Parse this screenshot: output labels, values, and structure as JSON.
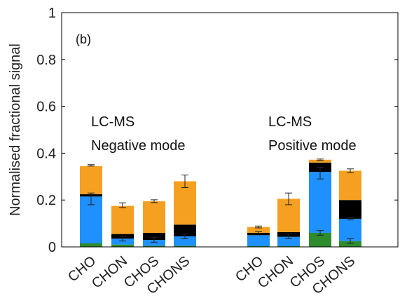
{
  "chart_data": {
    "type": "bar",
    "stacked": true,
    "panel_label": "(b)",
    "ylabel": "Normalised fractional signal",
    "xlabel": "",
    "ylim": [
      0,
      1
    ],
    "y_ticks": [
      "0",
      "0.2",
      "0.4",
      "0.6",
      "0.8",
      "1"
    ],
    "grid": false,
    "annotations": [
      {
        "lines": [
          "LC-MS",
          "Negative mode"
        ]
      },
      {
        "lines": [
          "LC-MS",
          "Positive mode"
        ]
      }
    ],
    "groups": [
      {
        "categories": [
          "CHO",
          "CHON",
          "CHOS",
          "CHONS"
        ],
        "stacks": [
          {
            "green": 0.015,
            "blue": 0.2,
            "black": 0.01,
            "orange": 0.12,
            "err_bars": [
              [
                0.205,
                0.025
              ],
              [
                0.348,
                0.003
              ]
            ]
          },
          {
            "green": 0.01,
            "blue": 0.025,
            "black": 0.02,
            "orange": 0.12,
            "err_bars": [
              [
                0.035,
                0.01
              ],
              [
                0.178,
                0.01
              ]
            ]
          },
          {
            "green": 0.005,
            "blue": 0.025,
            "black": 0.03,
            "orange": 0.135,
            "err_bars": [
              [
                0.03,
                0.01
              ],
              [
                0.195,
                0.006
              ]
            ]
          },
          {
            "green": 0.005,
            "blue": 0.04,
            "black": 0.05,
            "orange": 0.185,
            "err_bars": [
              [
                0.045,
                0.01
              ],
              [
                0.28,
                0.027
              ]
            ]
          }
        ]
      },
      {
        "categories": [
          "CHO",
          "CHON",
          "CHOS",
          "CHONS"
        ],
        "stacks": [
          {
            "green": 0.003,
            "blue": 0.047,
            "black": 0.01,
            "orange": 0.025,
            "err_bars": [
              [
                0.06,
                0.005
              ],
              [
                0.085,
                0.004
              ]
            ]
          },
          {
            "green": 0.003,
            "blue": 0.04,
            "black": 0.02,
            "orange": 0.142,
            "err_bars": [
              [
                0.045,
                0.01
              ],
              [
                0.205,
                0.025
              ]
            ]
          },
          {
            "green": 0.06,
            "blue": 0.26,
            "black": 0.04,
            "orange": 0.012,
            "err_bars": [
              [
                0.06,
                0.01
              ],
              [
                0.315,
                0.025
              ],
              [
                0.372,
                0.003
              ]
            ]
          },
          {
            "green": 0.025,
            "blue": 0.095,
            "black": 0.08,
            "orange": 0.125,
            "err_bars": [
              [
                0.025,
                0.01
              ],
              [
                0.12,
                0.005
              ],
              [
                0.325,
                0.008
              ]
            ]
          }
        ]
      }
    ],
    "series_colors": {
      "green": "#2e8b2e",
      "blue": "#1e90ff",
      "black": "#000000",
      "orange": "#f5a020"
    }
  }
}
